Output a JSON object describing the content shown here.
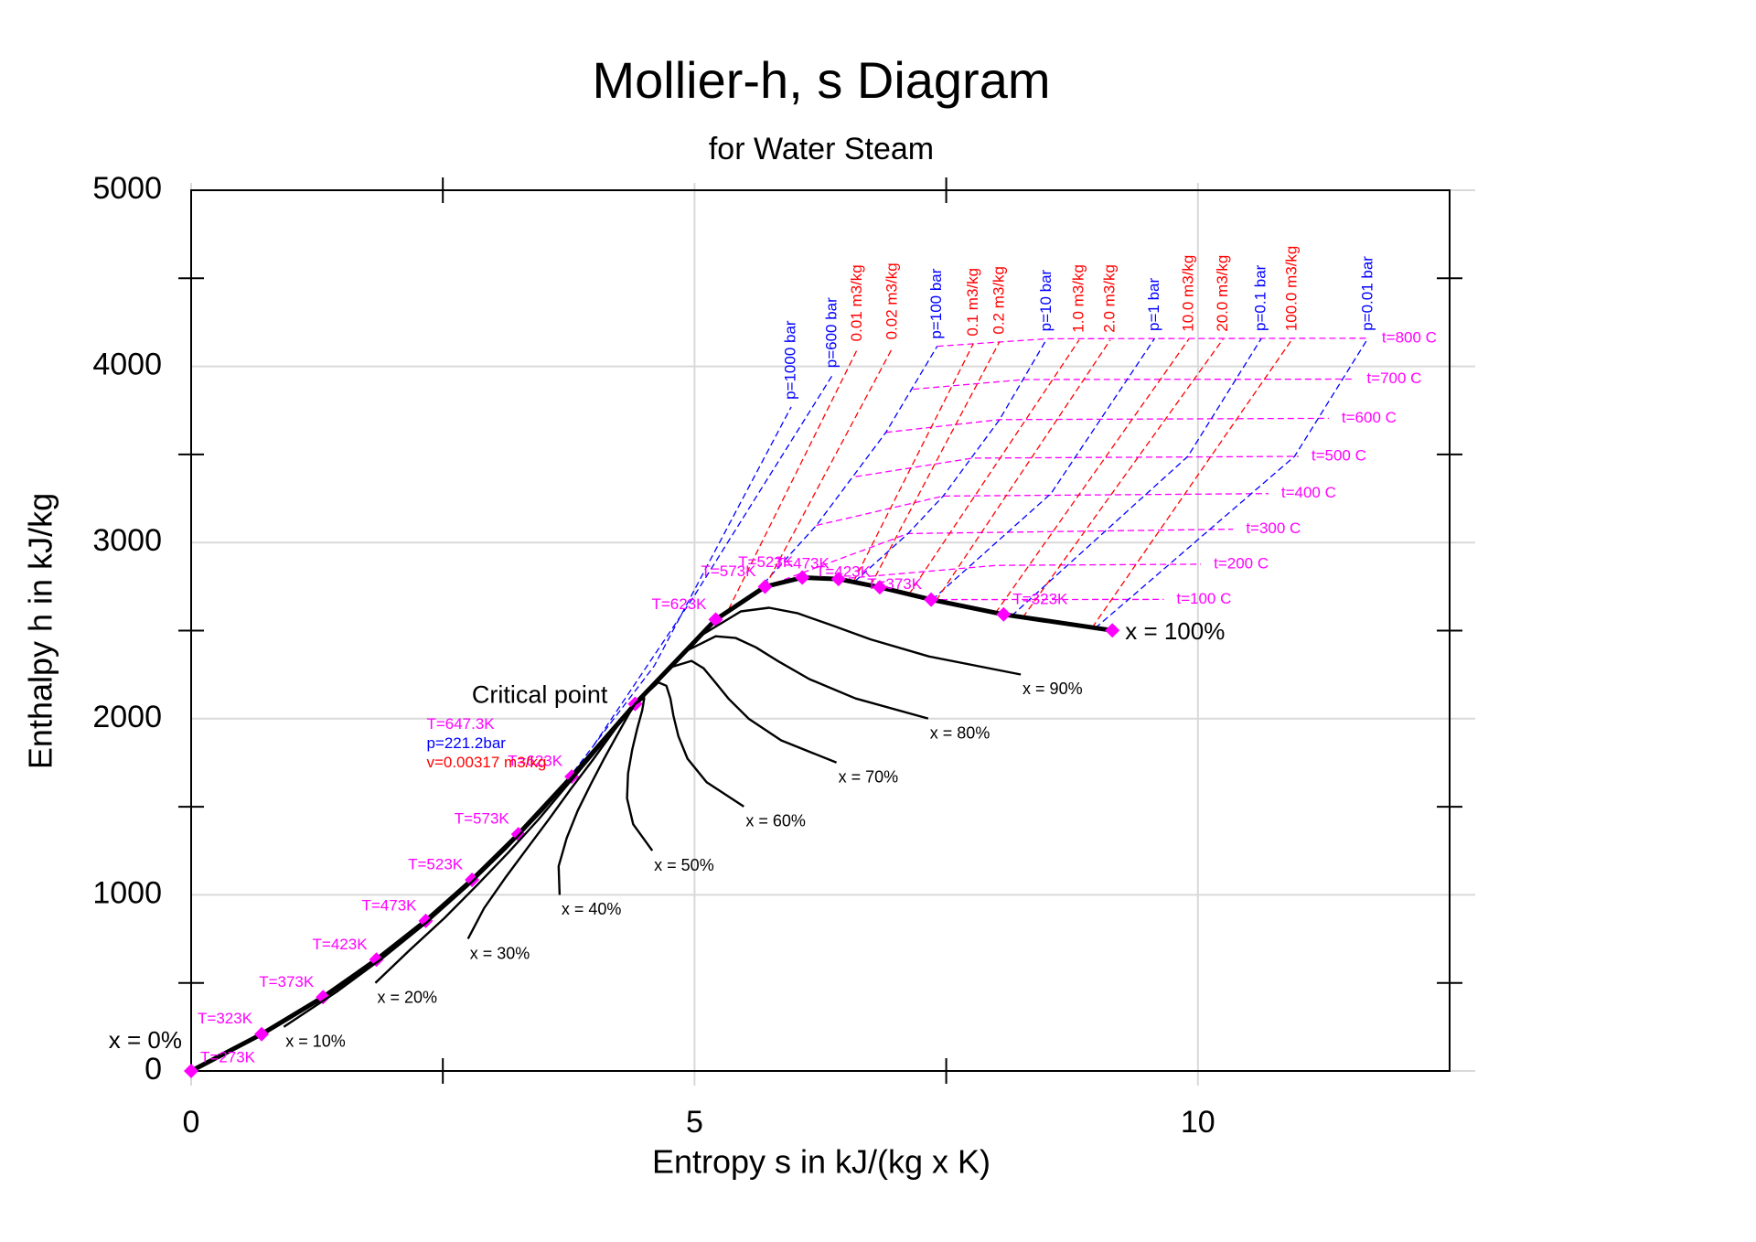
{
  "chart_data": {
    "type": "line",
    "title": "Mollier-h, s Diagram",
    "subtitle": "for Water Steam",
    "x_label": "Entropy s in kJ/(kg x K)",
    "y_label": "Enthalpy h in kJ/kg",
    "xlim": [
      0,
      12.5
    ],
    "ylim": [
      0,
      5000
    ],
    "xticks": [
      0,
      5,
      10
    ],
    "yticks": [
      0,
      1000,
      2000,
      3000,
      4000,
      5000
    ],
    "minor_xticks": [
      2.5,
      7.5
    ],
    "minor_yticks": [
      500,
      1500,
      2500,
      3500,
      4500
    ],
    "grid": true,
    "annotations": [
      {
        "text": "Critical point",
        "color": "#000000"
      },
      {
        "text": "T=647.3K",
        "color": "#ff00ff"
      },
      {
        "text": "p=221.2bar",
        "color": "#0000ff"
      },
      {
        "text": "v=0.00317 m3/kg",
        "color": "#ff0000"
      }
    ],
    "series": [
      {
        "name": "x = 0%",
        "color": "#000000",
        "line_style": "solid",
        "marker": "diamond",
        "marker_color": "#ff00ff",
        "x": [
          0,
          0.7,
          1.31,
          1.84,
          2.33,
          2.79,
          3.25,
          3.78,
          4.41
        ],
        "values": [
          0,
          209,
          419,
          632,
          852,
          1085,
          1344,
          1671,
          2084
        ],
        "point_labels": [
          "T=273K",
          "T=323K",
          "T=373K",
          "T=423K",
          "T=473K",
          "T=523K",
          "T=573K",
          "T=623K",
          null
        ]
      },
      {
        "name": "x = 100%",
        "color": "#000000",
        "line_style": "solid",
        "marker": "diamond",
        "marker_color": "#ff00ff",
        "x": [
          4.41,
          5.21,
          5.7,
          6.07,
          6.43,
          6.84,
          7.35,
          8.07,
          9.15
        ],
        "values": [
          2084,
          2563,
          2749,
          2801,
          2793,
          2746,
          2676,
          2592,
          2501
        ],
        "point_labels": [
          null,
          "T=623K",
          "T=573K",
          "T=523K",
          "T=473K",
          "T=423K",
          "T=373K",
          "T=323K",
          null
        ]
      },
      {
        "name": "x = 10%",
        "color": "#000000",
        "line_style": "solid",
        "x": [
          0.92,
          1.44,
          1.91,
          2.34,
          2.74,
          3.12,
          3.5,
          3.92,
          4.41
        ],
        "values": [
          250,
          447,
          645,
          843,
          1046,
          1257,
          1485,
          1760,
          2084
        ]
      },
      {
        "name": "x = 20%",
        "color": "#000000",
        "line_style": "solid",
        "x": [
          1.83,
          2.17,
          2.52,
          2.84,
          3.15,
          3.45,
          3.74,
          4.07,
          4.41
        ],
        "values": [
          500,
          686,
          870,
          1055,
          1240,
          1428,
          1625,
          1849,
          2084
        ]
      },
      {
        "name": "x = 30%",
        "color": "#000000",
        "line_style": "solid",
        "x": [
          2.75,
          2.91,
          3.12,
          3.34,
          3.56,
          3.77,
          3.99,
          4.21,
          4.41
        ],
        "values": [
          750,
          924,
          1096,
          1266,
          1434,
          1600,
          1766,
          1939,
          2084
        ]
      },
      {
        "name": "x = 40%",
        "color": "#000000",
        "line_style": "solid",
        "x": [
          3.66,
          3.65,
          3.73,
          3.84,
          3.97,
          4.1,
          4.23,
          4.35,
          4.41
        ],
        "values": [
          1000,
          1162,
          1322,
          1478,
          1628,
          1771,
          1906,
          2028,
          2084
        ]
      },
      {
        "name": "x = 50%",
        "color": "#000000",
        "line_style": "solid",
        "x": [
          4.58,
          4.39,
          4.33,
          4.34,
          4.38,
          4.43,
          4.48,
          4.5,
          4.41
        ],
        "values": [
          1251,
          1401,
          1548,
          1689,
          1823,
          1943,
          2047,
          2117,
          2084
        ]
      },
      {
        "name": "x = 60%",
        "color": "#000000",
        "line_style": "solid",
        "x": [
          5.49,
          5.12,
          4.93,
          4.84,
          4.79,
          4.76,
          4.72,
          4.64,
          4.41
        ],
        "values": [
          1501,
          1639,
          1773,
          1900,
          2017,
          2115,
          2187,
          2206,
          2084
        ]
      },
      {
        "name": "x = 70%",
        "color": "#000000",
        "line_style": "solid",
        "x": [
          6.41,
          5.86,
          5.54,
          5.34,
          5.2,
          5.09,
          4.97,
          4.78,
          4.41
        ],
        "values": [
          1751,
          1877,
          1999,
          2112,
          2211,
          2286,
          2328,
          2295,
          2084
        ]
      },
      {
        "name": "x = 80%",
        "color": "#000000",
        "line_style": "solid",
        "x": [
          7.32,
          6.6,
          6.14,
          5.84,
          5.61,
          5.41,
          5.21,
          4.92,
          4.41
        ],
        "values": [
          2001,
          2115,
          2225,
          2323,
          2405,
          2458,
          2468,
          2385,
          2084
        ]
      },
      {
        "name": "x = 90%",
        "color": "#000000",
        "line_style": "solid",
        "x": [
          8.24,
          7.33,
          6.75,
          6.34,
          6.02,
          5.74,
          5.46,
          5.07,
          4.41
        ],
        "values": [
          2251,
          2353,
          2450,
          2535,
          2599,
          2630,
          2609,
          2474,
          2084
        ]
      },
      {
        "name": "t=100 C",
        "color": "#ff00ff",
        "line_style": "dashed",
        "x": [
          7.35,
          9.66
        ],
        "values": [
          2676,
          2677
        ]
      },
      {
        "name": "t=200 C",
        "color": "#ff00ff",
        "line_style": "dashed",
        "x": [
          6.43,
          8.0,
          10.03
        ],
        "values": [
          2793,
          2870,
          2877
        ]
      },
      {
        "name": "t=300 C",
        "color": "#ff00ff",
        "line_style": "dashed",
        "x": [
          5.7,
          7.12,
          10.35
        ],
        "values": [
          2749,
          3051,
          3076
        ]
      },
      {
        "name": "t=400 C",
        "color": "#ff00ff",
        "line_style": "dashed",
        "x": [
          6.21,
          7.47,
          10.7
        ],
        "values": [
          3097,
          3264,
          3278
        ]
      },
      {
        "name": "t=500 C",
        "color": "#ff00ff",
        "line_style": "dashed",
        "x": [
          6.6,
          7.76,
          11.0
        ],
        "values": [
          3374,
          3479,
          3489
        ]
      },
      {
        "name": "t=600 C",
        "color": "#ff00ff",
        "line_style": "dashed",
        "x": [
          6.9,
          8.03,
          11.3
        ],
        "values": [
          3625,
          3698,
          3705
        ]
      },
      {
        "name": "t=700 C",
        "color": "#ff00ff",
        "line_style": "dashed",
        "x": [
          7.17,
          8.27,
          11.55
        ],
        "values": [
          3870,
          3925,
          3928
        ]
      },
      {
        "name": "t=800 C",
        "color": "#ff00ff",
        "line_style": "dashed",
        "x": [
          7.41,
          8.5,
          11.7
        ],
        "values": [
          4114,
          4157,
          4160
        ]
      },
      {
        "name": "p=1000 bar",
        "color": "#0000ff",
        "line_style": "dashed",
        "x": [
          3.8,
          4.6,
          5.96
        ],
        "values": [
          1700,
          2300,
          3770
        ]
      },
      {
        "name": "p=600 bar",
        "color": "#0000ff",
        "line_style": "dashed",
        "x": [
          4.0,
          5.0,
          6.37
        ],
        "values": [
          1850,
          2700,
          3950
        ]
      },
      {
        "name": "p=100 bar",
        "color": "#0000ff",
        "line_style": "dashed",
        "x": [
          5.62,
          6.21,
          6.9,
          7.41
        ],
        "values": [
          2725,
          3097,
          3625,
          4114
        ]
      },
      {
        "name": "p=10 bar",
        "color": "#0000ff",
        "line_style": "dashed",
        "x": [
          6.59,
          7.12,
          7.47,
          8.03,
          8.5
        ],
        "values": [
          2778,
          3051,
          3264,
          3698,
          4157
        ]
      },
      {
        "name": "p=1 bar",
        "color": "#0000ff",
        "line_style": "dashed",
        "x": [
          7.36,
          8.54,
          9.57
        ],
        "values": [
          2675,
          3278,
          4159
        ]
      },
      {
        "name": "p=0.1 bar",
        "color": "#0000ff",
        "line_style": "dashed",
        "x": [
          8.15,
          9.9,
          10.63
        ],
        "values": [
          2584,
          3489,
          4159
        ]
      },
      {
        "name": "p=0.01 bar",
        "color": "#0000ff",
        "line_style": "dashed",
        "x": [
          8.98,
          10.96,
          11.69
        ],
        "values": [
          2514,
          3489,
          4160
        ]
      },
      {
        "name": "0.01 m3/kg",
        "color": "#ff0000",
        "line_style": "dashed",
        "x": [
          5.34,
          6.62
        ],
        "values": [
          2622,
          4100
        ]
      },
      {
        "name": "0.02 m3/kg",
        "color": "#ff0000",
        "line_style": "dashed",
        "x": [
          5.7,
          6.97
        ],
        "values": [
          2749,
          4110
        ]
      },
      {
        "name": "0.1 m3/kg",
        "color": "#ff0000",
        "line_style": "dashed",
        "x": [
          6.58,
          7.77
        ],
        "values": [
          2778,
          4130
        ]
      },
      {
        "name": "0.2 m3/kg",
        "color": "#ff0000",
        "line_style": "dashed",
        "x": [
          6.75,
          8.03
        ],
        "values": [
          2757,
          4140
        ]
      },
      {
        "name": "1.0 m3/kg",
        "color": "#ff0000",
        "line_style": "dashed",
        "x": [
          7.13,
          8.82
        ],
        "values": [
          2706,
          4150
        ]
      },
      {
        "name": "2.0 m3/kg",
        "color": "#ff0000",
        "line_style": "dashed",
        "x": [
          7.4,
          9.13
        ],
        "values": [
          2672,
          4150
        ]
      },
      {
        "name": "10.0 m3/kg",
        "color": "#ff0000",
        "line_style": "dashed",
        "x": [
          7.99,
          9.91
        ],
        "values": [
          2600,
          4155
        ]
      },
      {
        "name": "20.0 m3/kg",
        "color": "#ff0000",
        "line_style": "dashed",
        "x": [
          8.26,
          10.25
        ],
        "values": [
          2574,
          4155
        ]
      },
      {
        "name": "100.0 m3/kg",
        "color": "#ff0000",
        "line_style": "dashed",
        "x": [
          8.95,
          10.94
        ],
        "values": [
          2517,
          4158
        ]
      }
    ]
  }
}
